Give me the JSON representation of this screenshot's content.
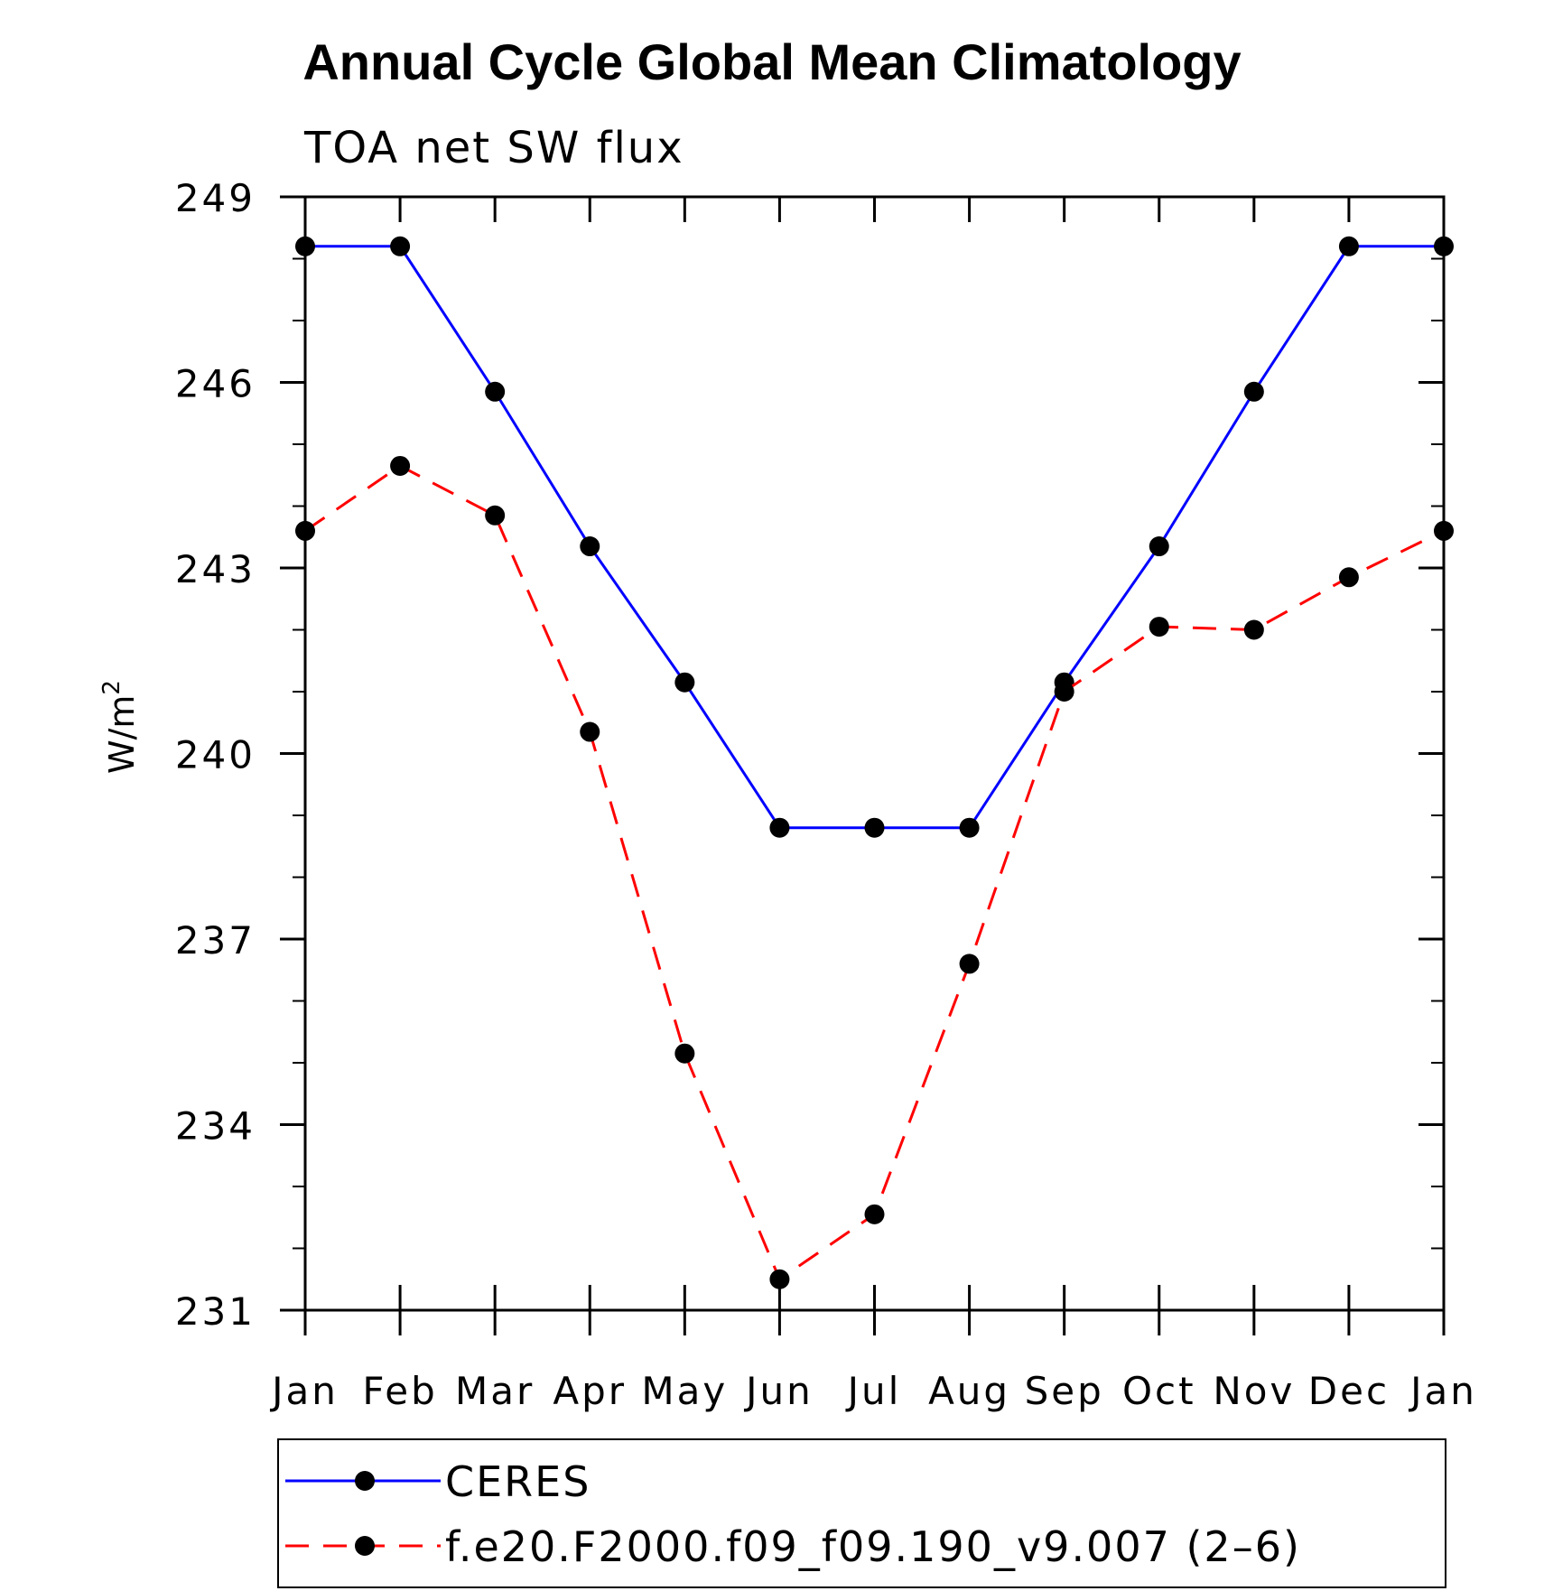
{
  "chart_data": {
    "type": "line",
    "title": "Annual Cycle Global Mean Climatology",
    "subtitle": "TOA net SW flux",
    "ylabel": "W/m",
    "ylabel_superscript": "2",
    "categories": [
      "Jan",
      "Feb",
      "Mar",
      "Apr",
      "May",
      "Jun",
      "Jul",
      "Aug",
      "Sep",
      "Oct",
      "Nov",
      "Dec",
      "Jan"
    ],
    "ylim": [
      231,
      249
    ],
    "yticks": [
      231,
      234,
      237,
      240,
      243,
      246,
      249
    ],
    "series": [
      {
        "name": "CERES",
        "color": "#0000ff",
        "dash": "solid",
        "values": [
          248.2,
          248.2,
          245.85,
          243.35,
          241.15,
          238.8,
          238.8,
          238.8,
          241.15,
          243.35,
          245.85,
          248.2,
          248.2
        ]
      },
      {
        "name": "f.e20.F2000.f09_f09.190_v9.007 (2–6)",
        "color": "#ff0000",
        "dash": "dashed",
        "values": [
          243.6,
          244.65,
          243.85,
          240.35,
          235.15,
          231.5,
          232.55,
          236.6,
          241.0,
          242.05,
          242.0,
          242.85,
          243.6
        ]
      }
    ],
    "legend": {
      "placement": "bottom"
    },
    "grid": false
  }
}
